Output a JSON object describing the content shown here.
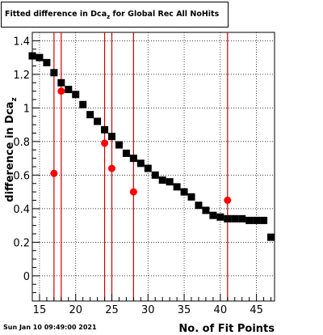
{
  "title": {
    "prefix": "Fitted difference in Dca",
    "subscript": "z",
    "suffix": " for Global Rec All NoHits"
  },
  "footer": {
    "timestamp": "Sun Jan 10 09:49:00 2021"
  },
  "colors": {
    "series_black": "#000000",
    "series_red": "#ff0000",
    "vlines": "#cc0000",
    "grid": "#000000"
  },
  "chart_data": {
    "type": "scatter",
    "xlabel": "No. of Fit Points",
    "ylabel": "difference in Dca",
    "ylabel_subscript": "z",
    "xlim": [
      14,
      47.5
    ],
    "ylim": [
      -0.15,
      1.45
    ],
    "x_ticks": [
      15,
      20,
      25,
      30,
      35,
      40,
      45
    ],
    "y_ticks": [
      0,
      0.2,
      0.4,
      0.6,
      0.8,
      1,
      1.2,
      1.4
    ],
    "grid": true,
    "series": [
      {
        "marker": "square",
        "color": "#000000",
        "points": [
          [
            14,
            1.31
          ],
          [
            15,
            1.3
          ],
          [
            16,
            1.27
          ],
          [
            17,
            1.21
          ],
          [
            18,
            1.15
          ],
          [
            19,
            1.11
          ],
          [
            20,
            1.08
          ],
          [
            21,
            1.02
          ],
          [
            22,
            0.96
          ],
          [
            23,
            0.92
          ],
          [
            24,
            0.87
          ],
          [
            25,
            0.83
          ],
          [
            26,
            0.78
          ],
          [
            27,
            0.73
          ],
          [
            28,
            0.7
          ],
          [
            29,
            0.67
          ],
          [
            30,
            0.64
          ],
          [
            31,
            0.6
          ],
          [
            32,
            0.57
          ],
          [
            33,
            0.56
          ],
          [
            34,
            0.53
          ],
          [
            35,
            0.5
          ],
          [
            36,
            0.47
          ],
          [
            37,
            0.42
          ],
          [
            38,
            0.39
          ],
          [
            39,
            0.36
          ],
          [
            40,
            0.35
          ],
          [
            41,
            0.34
          ],
          [
            42,
            0.34
          ],
          [
            43,
            0.34
          ],
          [
            44,
            0.33
          ],
          [
            45,
            0.33
          ],
          [
            46,
            0.33
          ],
          [
            47,
            0.23
          ]
        ]
      },
      {
        "marker": "circle",
        "color": "#ff0000",
        "points": [
          [
            17,
            0.61
          ],
          [
            18,
            1.1
          ],
          [
            24,
            0.79
          ],
          [
            25,
            0.64
          ],
          [
            28,
            0.5
          ],
          [
            41,
            0.45
          ]
        ]
      }
    ],
    "vlines": [
      17,
      18,
      24,
      25,
      28,
      41
    ]
  }
}
